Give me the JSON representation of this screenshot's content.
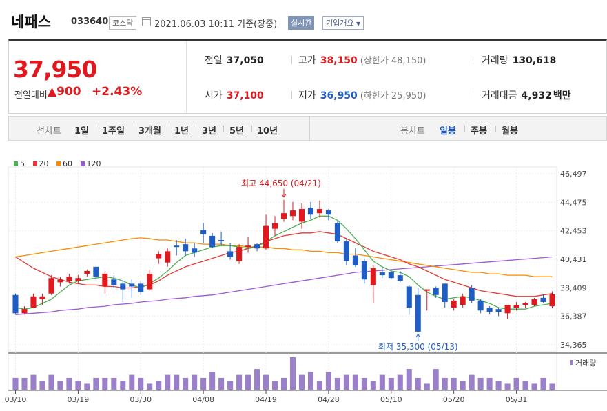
{
  "header": {
    "name": "네패스",
    "code": "033640",
    "market": "코스닥",
    "date": "2021.06.03 10:11",
    "basis": "기준(장중)",
    "realtime": "실시간",
    "company_info": "기업개요"
  },
  "quote": {
    "price": "37,950",
    "change_label": "전일대비",
    "change_value": "▲900",
    "change_pct": "+2.43%",
    "prev_close_label": "전일",
    "prev_close": "37,050",
    "high_label": "고가",
    "high": "38,150",
    "upper_limit": "(상한가 48,150)",
    "volume_label": "거래량",
    "volume": "130,618",
    "open_label": "시가",
    "open": "37,100",
    "low_label": "저가",
    "low": "36,950",
    "lower_limit": "(하한가 25,950)",
    "amount_label": "거래대금",
    "amount": "4,932",
    "amount_unit": "백만"
  },
  "toolbar": {
    "line_label": "선차트",
    "line_periods": [
      "1일",
      "1주일",
      "3개월",
      "1년",
      "3년",
      "5년",
      "10년"
    ],
    "candle_label": "봉차트",
    "candle_periods": [
      "일봉",
      "주봉",
      "월봉"
    ],
    "candle_selected": "일봉"
  },
  "colors": {
    "up": "#e0191e",
    "down": "#1f5dc5",
    "ma5": "#4caf50",
    "ma20": "#e53935",
    "ma60": "#fb8c00",
    "ma120": "#9c5bd6",
    "volume": "#9a7fc9"
  },
  "chart_data": {
    "type": "candlestick",
    "legend": [
      "5",
      "20",
      "60",
      "120"
    ],
    "volume_label": "거래량",
    "y_ticks": [
      "46,497",
      "44,475",
      "42,453",
      "40,431",
      "38,409",
      "36,387",
      "34,365"
    ],
    "ylim": [
      34365,
      46497
    ],
    "x_labels": [
      "03/10",
      "03/19",
      "03/30",
      "04/08",
      "04/19",
      "04/28",
      "05/10",
      "05/20",
      "05/31"
    ],
    "x_label_index": [
      0,
      7,
      14,
      21,
      28,
      35,
      42,
      49,
      56
    ],
    "annotations": {
      "high": {
        "text": "최고 44,650 (04/21)",
        "index": 30,
        "value": 44650
      },
      "low": {
        "text": "최저 35,300 (05/13)",
        "index": 45,
        "value": 35300
      }
    },
    "candles": [
      {
        "o": 37900,
        "h": 38000,
        "l": 36500,
        "c": 36600
      },
      {
        "o": 36600,
        "h": 37100,
        "l": 36500,
        "c": 36900
      },
      {
        "o": 37000,
        "h": 38000,
        "l": 36950,
        "c": 37800
      },
      {
        "o": 37600,
        "h": 38000,
        "l": 37200,
        "c": 37800
      },
      {
        "o": 38000,
        "h": 39300,
        "l": 37900,
        "c": 39100
      },
      {
        "o": 38800,
        "h": 39200,
        "l": 38500,
        "c": 39000
      },
      {
        "o": 38900,
        "h": 39400,
        "l": 38700,
        "c": 39200
      },
      {
        "o": 38900,
        "h": 39300,
        "l": 38700,
        "c": 39100
      },
      {
        "o": 39400,
        "h": 39700,
        "l": 39200,
        "c": 39600
      },
      {
        "o": 39900,
        "h": 39800,
        "l": 39000,
        "c": 39200
      },
      {
        "o": 38500,
        "h": 39600,
        "l": 38000,
        "c": 39400
      },
      {
        "o": 39000,
        "h": 39300,
        "l": 38400,
        "c": 38600
      },
      {
        "o": 38700,
        "h": 38900,
        "l": 37400,
        "c": 38300
      },
      {
        "o": 38700,
        "h": 39000,
        "l": 37700,
        "c": 38500
      },
      {
        "o": 38700,
        "h": 38900,
        "l": 37900,
        "c": 38100
      },
      {
        "o": 38300,
        "h": 39700,
        "l": 38200,
        "c": 39400
      },
      {
        "o": 40500,
        "h": 41000,
        "l": 40100,
        "c": 40800
      },
      {
        "o": 40200,
        "h": 41200,
        "l": 39900,
        "c": 41000
      },
      {
        "o": 41400,
        "h": 41800,
        "l": 40700,
        "c": 41300
      },
      {
        "o": 41500,
        "h": 41900,
        "l": 40700,
        "c": 41000
      },
      {
        "o": 41200,
        "h": 41600,
        "l": 40600,
        "c": 40900
      },
      {
        "o": 42500,
        "h": 43000,
        "l": 41600,
        "c": 42200
      },
      {
        "o": 42100,
        "h": 42300,
        "l": 41200,
        "c": 41300
      },
      {
        "o": 41800,
        "h": 42400,
        "l": 41400,
        "c": 41700
      },
      {
        "o": 41000,
        "h": 41600,
        "l": 40400,
        "c": 40600
      },
      {
        "o": 40300,
        "h": 41500,
        "l": 40100,
        "c": 41300
      },
      {
        "o": 41300,
        "h": 42000,
        "l": 40900,
        "c": 41400
      },
      {
        "o": 41500,
        "h": 41600,
        "l": 41000,
        "c": 41200
      },
      {
        "o": 41200,
        "h": 43600,
        "l": 41100,
        "c": 42800
      },
      {
        "o": 42600,
        "h": 43500,
        "l": 42100,
        "c": 43000
      },
      {
        "o": 43300,
        "h": 44650,
        "l": 43100,
        "c": 43700
      },
      {
        "o": 43500,
        "h": 44500,
        "l": 43200,
        "c": 43900
      },
      {
        "o": 43100,
        "h": 44400,
        "l": 42600,
        "c": 44000
      },
      {
        "o": 44100,
        "h": 44500,
        "l": 43300,
        "c": 43600
      },
      {
        "o": 43700,
        "h": 44600,
        "l": 43400,
        "c": 44000
      },
      {
        "o": 43900,
        "h": 44000,
        "l": 43200,
        "c": 43600
      },
      {
        "o": 43000,
        "h": 43100,
        "l": 41600,
        "c": 41700
      },
      {
        "o": 41700,
        "h": 41900,
        "l": 40000,
        "c": 40300
      },
      {
        "o": 40700,
        "h": 41200,
        "l": 39900,
        "c": 40000
      },
      {
        "o": 40300,
        "h": 40500,
        "l": 38700,
        "c": 39000
      },
      {
        "o": 38600,
        "h": 40000,
        "l": 37300,
        "c": 39800
      },
      {
        "o": 39500,
        "h": 39800,
        "l": 39100,
        "c": 39300
      },
      {
        "o": 39500,
        "h": 39700,
        "l": 39000,
        "c": 39100
      },
      {
        "o": 39300,
        "h": 39600,
        "l": 38800,
        "c": 38900
      },
      {
        "o": 38500,
        "h": 38600,
        "l": 36500,
        "c": 37000
      },
      {
        "o": 37900,
        "h": 38400,
        "l": 35300,
        "c": 35300
      },
      {
        "o": 38200,
        "h": 38300,
        "l": 36800,
        "c": 38300
      },
      {
        "o": 38400,
        "h": 38500,
        "l": 37700,
        "c": 37900
      },
      {
        "o": 38700,
        "h": 38700,
        "l": 37000,
        "c": 37400
      },
      {
        "o": 37000,
        "h": 37600,
        "l": 36800,
        "c": 37500
      },
      {
        "o": 37200,
        "h": 38000,
        "l": 37000,
        "c": 37800
      },
      {
        "o": 38400,
        "h": 38600,
        "l": 37300,
        "c": 37500
      },
      {
        "o": 37500,
        "h": 37600,
        "l": 36600,
        "c": 36800
      },
      {
        "o": 37000,
        "h": 37100,
        "l": 36500,
        "c": 36700
      },
      {
        "o": 36900,
        "h": 37000,
        "l": 36400,
        "c": 36700
      },
      {
        "o": 36600,
        "h": 37200,
        "l": 36200,
        "c": 37200
      },
      {
        "o": 37000,
        "h": 37400,
        "l": 36800,
        "c": 37200
      },
      {
        "o": 37200,
        "h": 37400,
        "l": 37000,
        "c": 37300
      },
      {
        "o": 37200,
        "h": 37700,
        "l": 37100,
        "c": 37600
      },
      {
        "o": 37700,
        "h": 37900,
        "l": 37300,
        "c": 37400
      },
      {
        "o": 37100,
        "h": 38150,
        "l": 36950,
        "c": 37950
      }
    ],
    "ma5": [
      37000,
      36900,
      37000,
      37300,
      37600,
      38100,
      38600,
      38900,
      39000,
      39100,
      39200,
      39100,
      38900,
      38600,
      38400,
      38700,
      39100,
      39600,
      40200,
      40700,
      40900,
      41100,
      41300,
      41400,
      41400,
      41300,
      41200,
      41300,
      41700,
      42100,
      42400,
      42700,
      43000,
      43200,
      43500,
      43500,
      43200,
      42600,
      41900,
      41100,
      40300,
      39900,
      39600,
      39500,
      39200,
      38600,
      38100,
      37800,
      37600,
      37700,
      37800,
      37700,
      37500,
      37300,
      37000,
      36900,
      36900,
      36900,
      37100,
      37200,
      37300
    ],
    "ma20": [
      40600,
      40200,
      39800,
      39500,
      39200,
      39000,
      38800,
      38700,
      38600,
      38600,
      38500,
      38500,
      38400,
      38400,
      38500,
      38600,
      38900,
      39300,
      39600,
      39900,
      40100,
      40300,
      40500,
      40700,
      40900,
      41000,
      41200,
      41400,
      41700,
      41900,
      42100,
      42200,
      42300,
      42300,
      42400,
      42300,
      42200,
      41900,
      41600,
      41300,
      41000,
      40800,
      40600,
      40400,
      40100,
      39900,
      39600,
      39300,
      39000,
      38800,
      38600,
      38400,
      38200,
      38100,
      38000,
      37900,
      37800,
      37800,
      37800,
      37900,
      38000
    ],
    "ma60": [
      40600,
      40700,
      40800,
      40900,
      41000,
      41100,
      41200,
      41300,
      41400,
      41500,
      41600,
      41700,
      41800,
      41900,
      41950,
      41900,
      41800,
      41800,
      41700,
      41600,
      41600,
      41500,
      41500,
      41500,
      41400,
      41400,
      41300,
      41300,
      41300,
      41200,
      41200,
      41100,
      41100,
      41000,
      41000,
      40900,
      40900,
      40800,
      40800,
      40700,
      40600,
      40500,
      40400,
      40300,
      40200,
      40100,
      40000,
      39900,
      39800,
      39700,
      39600,
      39500,
      39500,
      39400,
      39400,
      39300,
      39300,
      39300,
      39200,
      39200,
      39200
    ],
    "ma120": [
      36500,
      36550,
      36600,
      36650,
      36700,
      36800,
      36850,
      36900,
      37000,
      37050,
      37100,
      37200,
      37250,
      37300,
      37400,
      37450,
      37500,
      37600,
      37650,
      37700,
      37800,
      37850,
      37900,
      38000,
      38100,
      38200,
      38300,
      38400,
      38500,
      38600,
      38700,
      38800,
      38900,
      39000,
      39100,
      39200,
      39300,
      39400,
      39500,
      39550,
      39600,
      39650,
      39700,
      39750,
      39800,
      39850,
      39900,
      39950,
      40000,
      40050,
      40100,
      40150,
      40200,
      40250,
      40300,
      40350,
      40400,
      40450,
      40500,
      40550,
      40600
    ],
    "volume": [
      4,
      4,
      5,
      3,
      5,
      3,
      4,
      3,
      2,
      4,
      4,
      4,
      3,
      5,
      4,
      2,
      3,
      5,
      5,
      4,
      5,
      4,
      6,
      4,
      3,
      5,
      5,
      7,
      5,
      3,
      4,
      11,
      5,
      6,
      3,
      6,
      4,
      5,
      5,
      4,
      3,
      5,
      4,
      5,
      7,
      4,
      2,
      7,
      4,
      4,
      3,
      5,
      4,
      4,
      3,
      2,
      4,
      3,
      2,
      4,
      2
    ]
  }
}
